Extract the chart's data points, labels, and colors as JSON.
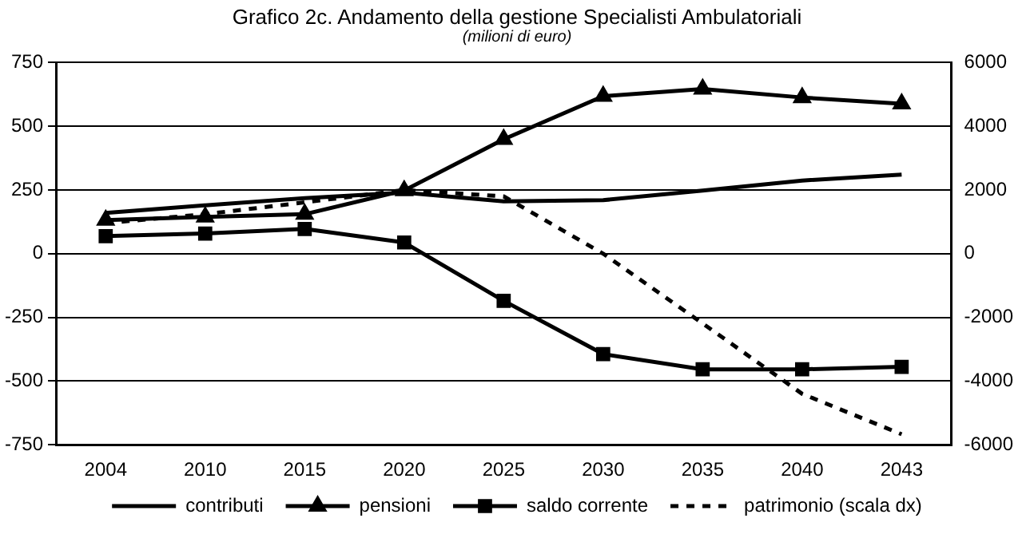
{
  "chart_data": {
    "type": "line",
    "title": "Grafico 2c. Andamento della gestione Specialisti Ambulatoriali",
    "subtitle": "(milioni di euro)",
    "categories": [
      "2004",
      "2010",
      "2015",
      "2020",
      "2025",
      "2030",
      "2035",
      "2040",
      "2043"
    ],
    "series": [
      {
        "name": "contributi",
        "color": "#000000",
        "marker": "none",
        "line_style": "solid",
        "values": [
          160,
          190,
          218,
          240,
          205,
          210,
          248,
          287,
          310
        ]
      },
      {
        "name": "pensioni",
        "color": "#000000",
        "marker": "triangle",
        "line_style": "solid",
        "values": [
          132,
          144,
          155,
          248,
          449,
          618,
          646,
          613,
          588
        ]
      },
      {
        "name": "saldo corrente",
        "color": "#000000",
        "marker": "square",
        "line_style": "solid",
        "values": [
          69,
          79,
          97,
          44,
          -185,
          -394,
          -454,
          -454,
          -444
        ]
      },
      {
        "name": "patrimonio (scala dx)",
        "color": "#000000",
        "marker": "none",
        "line_style": "dashed",
        "axis": "y2",
        "values": [
          960,
          1240,
          1610,
          2000,
          1800,
          0,
          -2190,
          -4400,
          -5670
        ]
      }
    ],
    "ylim": [
      -750,
      750
    ],
    "yticks": [
      -750,
      -500,
      -250,
      0,
      250,
      500,
      750
    ],
    "y2lim": [
      -6000,
      6000
    ],
    "y2ticks": [
      -6000,
      -4000,
      -2000,
      0,
      2000,
      4000,
      6000
    ],
    "grid": "y",
    "legend": "bottom"
  }
}
